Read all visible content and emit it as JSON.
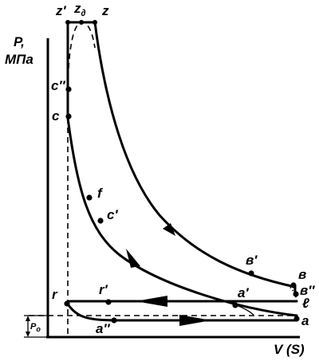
{
  "axes": {
    "y_label_line1": "P,",
    "y_label_line2": "МПа",
    "x_label": "V (S)"
  },
  "pressure_label": "P",
  "pressure_sub": "o",
  "points": {
    "z_prime": "z′",
    "z_d_base": "z",
    "z_d_sub": "∂",
    "z": "z",
    "c_dprime": "c″",
    "c": "c",
    "f": "f",
    "c_prime": "c′",
    "b_prime": "в′",
    "b": "в",
    "b_dprime": "в″",
    "b_script": "ℓ",
    "r": "r",
    "r_prime": "r′",
    "a_prime": "a′",
    "a_dprime": "a″",
    "a": "a"
  }
}
